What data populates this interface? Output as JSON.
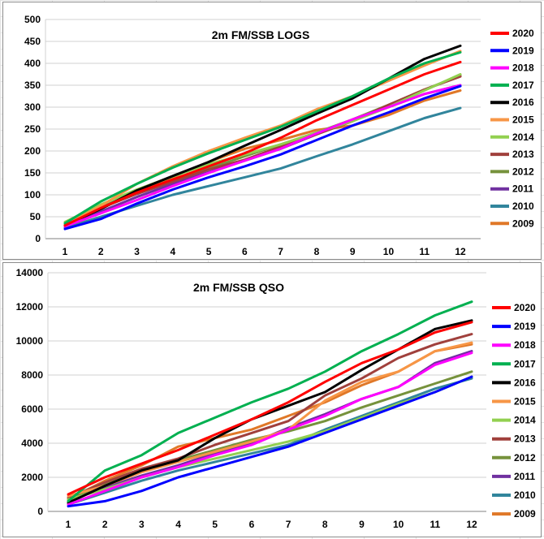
{
  "chart_data": [
    {
      "type": "line",
      "title": "2m FM/SSB  LOGS",
      "xlabel": "",
      "ylabel": "",
      "x": [
        1,
        2,
        3,
        4,
        5,
        6,
        7,
        8,
        9,
        10,
        11,
        12
      ],
      "ylim": [
        0,
        500
      ],
      "yticks": [
        0,
        50,
        100,
        150,
        200,
        250,
        300,
        350,
        400,
        450,
        500
      ],
      "grid": true,
      "legend_position": "right",
      "series": [
        {
          "name": "2020",
          "color": "#ff0000",
          "values": [
            30,
            70,
            105,
            135,
            165,
            195,
            230,
            270,
            305,
            340,
            375,
            403
          ]
        },
        {
          "name": "2019",
          "color": "#0000ff",
          "values": [
            22,
            45,
            80,
            112,
            140,
            165,
            192,
            225,
            258,
            288,
            320,
            348
          ]
        },
        {
          "name": "2018",
          "color": "#ff00ff",
          "values": [
            28,
            58,
            88,
            120,
            150,
            178,
            205,
            240,
            272,
            300,
            330,
            350
          ]
        },
        {
          "name": "2017",
          "color": "#00b050",
          "values": [
            35,
            85,
            125,
            162,
            195,
            225,
            255,
            290,
            325,
            365,
            400,
            425
          ]
        },
        {
          "name": "2016",
          "color": "#000000",
          "values": [
            30,
            68,
            110,
            143,
            175,
            212,
            248,
            285,
            320,
            365,
            410,
            440
          ]
        },
        {
          "name": "2015",
          "color": "#f79646",
          "values": [
            32,
            75,
            125,
            165,
            200,
            230,
            258,
            295,
            325,
            360,
            395,
            428
          ]
        },
        {
          "name": "2014",
          "color": "#92d050",
          "values": [
            38,
            78,
            112,
            142,
            170,
            192,
            215,
            242,
            268,
            300,
            338,
            375
          ]
        },
        {
          "name": "2013",
          "color": "#a0403c",
          "values": [
            30,
            70,
            102,
            130,
            158,
            180,
            210,
            238,
            268,
            305,
            340,
            370
          ]
        },
        {
          "name": "2012",
          "color": "#76923c",
          "values": [
            32,
            72,
            105,
            133,
            160,
            188,
            215,
            242,
            272,
            305,
            340,
            372
          ]
        },
        {
          "name": "2011",
          "color": "#7030a0",
          "values": [
            28,
            62,
            95,
            125,
            152,
            178,
            205,
            238,
            270,
            300,
            330,
            350
          ]
        },
        {
          "name": "2010",
          "color": "#31859c",
          "values": [
            25,
            50,
            75,
            100,
            120,
            140,
            160,
            188,
            215,
            245,
            275,
            298
          ]
        },
        {
          "name": "2009",
          "color": "#e07828",
          "values": [
            30,
            68,
            108,
            140,
            175,
            205,
            225,
            248,
            258,
            282,
            315,
            338
          ]
        }
      ]
    },
    {
      "type": "line",
      "title": "2m FM/SSB  QSO",
      "xlabel": "",
      "ylabel": "",
      "x": [
        1,
        2,
        3,
        4,
        5,
        6,
        7,
        8,
        9,
        10,
        11,
        12
      ],
      "ylim": [
        0,
        14000
      ],
      "yticks": [
        0,
        2000,
        4000,
        6000,
        8000,
        10000,
        12000,
        14000
      ],
      "grid": true,
      "legend_position": "right",
      "series": [
        {
          "name": "2020",
          "color": "#ff0000",
          "values": [
            1000,
            2000,
            2800,
            3600,
            4500,
            5400,
            6400,
            7600,
            8700,
            9500,
            10500,
            11100
          ]
        },
        {
          "name": "2019",
          "color": "#0000ff",
          "values": [
            300,
            600,
            1200,
            2000,
            2600,
            3200,
            3800,
            4600,
            5400,
            6200,
            7000,
            7900
          ]
        },
        {
          "name": "2018",
          "color": "#ff00ff",
          "values": [
            400,
            1200,
            2000,
            2600,
            3300,
            3900,
            4800,
            5600,
            6600,
            7300,
            8600,
            9300
          ]
        },
        {
          "name": "2017",
          "color": "#00b050",
          "values": [
            600,
            2400,
            3300,
            4600,
            5500,
            6400,
            7200,
            8200,
            9400,
            10400,
            11500,
            12300
          ]
        },
        {
          "name": "2016",
          "color": "#000000",
          "values": [
            500,
            1500,
            2400,
            3000,
            4300,
            5400,
            6200,
            7000,
            8300,
            9500,
            10700,
            11200
          ]
        },
        {
          "name": "2015",
          "color": "#f79646",
          "values": [
            900,
            1500,
            2300,
            2900,
            3500,
            4100,
            4800,
            6500,
            7600,
            8200,
            9400,
            9900
          ]
        },
        {
          "name": "2014",
          "color": "#92d050",
          "values": [
            700,
            1300,
            2000,
            2600,
            3100,
            3600,
            4100,
            4700,
            5500,
            6300,
            7000,
            7900
          ]
        },
        {
          "name": "2013",
          "color": "#a0403c",
          "values": [
            800,
            1700,
            2500,
            3100,
            3900,
            4600,
            5300,
            6800,
            7800,
            9000,
            9800,
            10400
          ]
        },
        {
          "name": "2012",
          "color": "#76923c",
          "values": [
            700,
            1600,
            2400,
            3000,
            3600,
            4200,
            4700,
            5300,
            6100,
            6800,
            7500,
            8200
          ]
        },
        {
          "name": "2011",
          "color": "#7030a0",
          "values": [
            600,
            1400,
            2100,
            2700,
            3400,
            4000,
            4900,
            5700,
            6600,
            7300,
            8700,
            9400
          ]
        },
        {
          "name": "2010",
          "color": "#31859c",
          "values": [
            400,
            1100,
            1800,
            2400,
            2900,
            3400,
            3900,
            4800,
            5600,
            6400,
            7200,
            7800
          ]
        },
        {
          "name": "2009",
          "color": "#e07828",
          "values": [
            700,
            1800,
            2700,
            3800,
            4300,
            4800,
            5600,
            6400,
            7400,
            8200,
            9400,
            9800
          ]
        }
      ]
    }
  ]
}
